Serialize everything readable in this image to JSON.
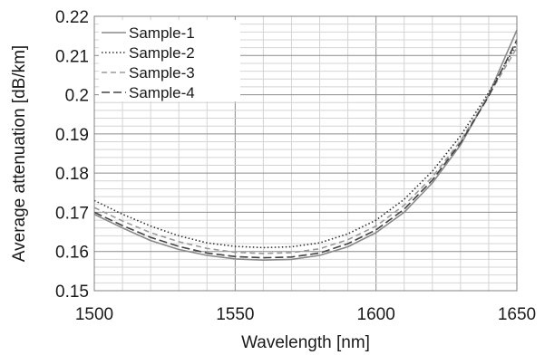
{
  "chart_data": {
    "type": "line",
    "title": "",
    "xlabel": "Wavelength [nm]",
    "ylabel": "Average attenuation [dB/km]",
    "xlim": [
      1500,
      1650
    ],
    "ylim": [
      0.15,
      0.22
    ],
    "x_ticks": [
      "1500",
      "1550",
      "1600",
      "1650"
    ],
    "y_ticks": [
      "0.15",
      "0.16",
      "0.17",
      "0.18",
      "0.19",
      "0.2",
      "0.21",
      "0.22"
    ],
    "grid": true,
    "legend_position": "top-left",
    "x": [
      1500,
      1510,
      1520,
      1530,
      1540,
      1550,
      1560,
      1570,
      1580,
      1590,
      1600,
      1610,
      1620,
      1630,
      1640,
      1650
    ],
    "series": [
      {
        "name": "Sample-1",
        "color": "#8a8a8a",
        "dash": "solid",
        "values": [
          0.1695,
          0.166,
          0.1628,
          0.1605,
          0.159,
          0.1581,
          0.1578,
          0.158,
          0.159,
          0.1612,
          0.1648,
          0.17,
          0.1775,
          0.1872,
          0.2,
          0.2165
        ]
      },
      {
        "name": "Sample-2",
        "color": "#333333",
        "dash": "dotted",
        "values": [
          0.173,
          0.1695,
          0.1665,
          0.164,
          0.1622,
          0.1613,
          0.161,
          0.1612,
          0.1622,
          0.1645,
          0.168,
          0.1733,
          0.1805,
          0.1895,
          0.2005,
          0.213
        ]
      },
      {
        "name": "Sample-3",
        "color": "#9a9a9a",
        "dash": "dashed",
        "values": [
          0.1712,
          0.1678,
          0.1648,
          0.1625,
          0.1608,
          0.1598,
          0.1595,
          0.1597,
          0.1607,
          0.163,
          0.1665,
          0.1718,
          0.179,
          0.1882,
          0.1998,
          0.212
        ]
      },
      {
        "name": "Sample-4",
        "color": "#444444",
        "dash": "longdash",
        "values": [
          0.17,
          0.1666,
          0.1636,
          0.1613,
          0.1596,
          0.1587,
          0.1584,
          0.1586,
          0.1596,
          0.162,
          0.1655,
          0.1708,
          0.1782,
          0.1877,
          0.1996,
          0.214
        ]
      }
    ]
  }
}
